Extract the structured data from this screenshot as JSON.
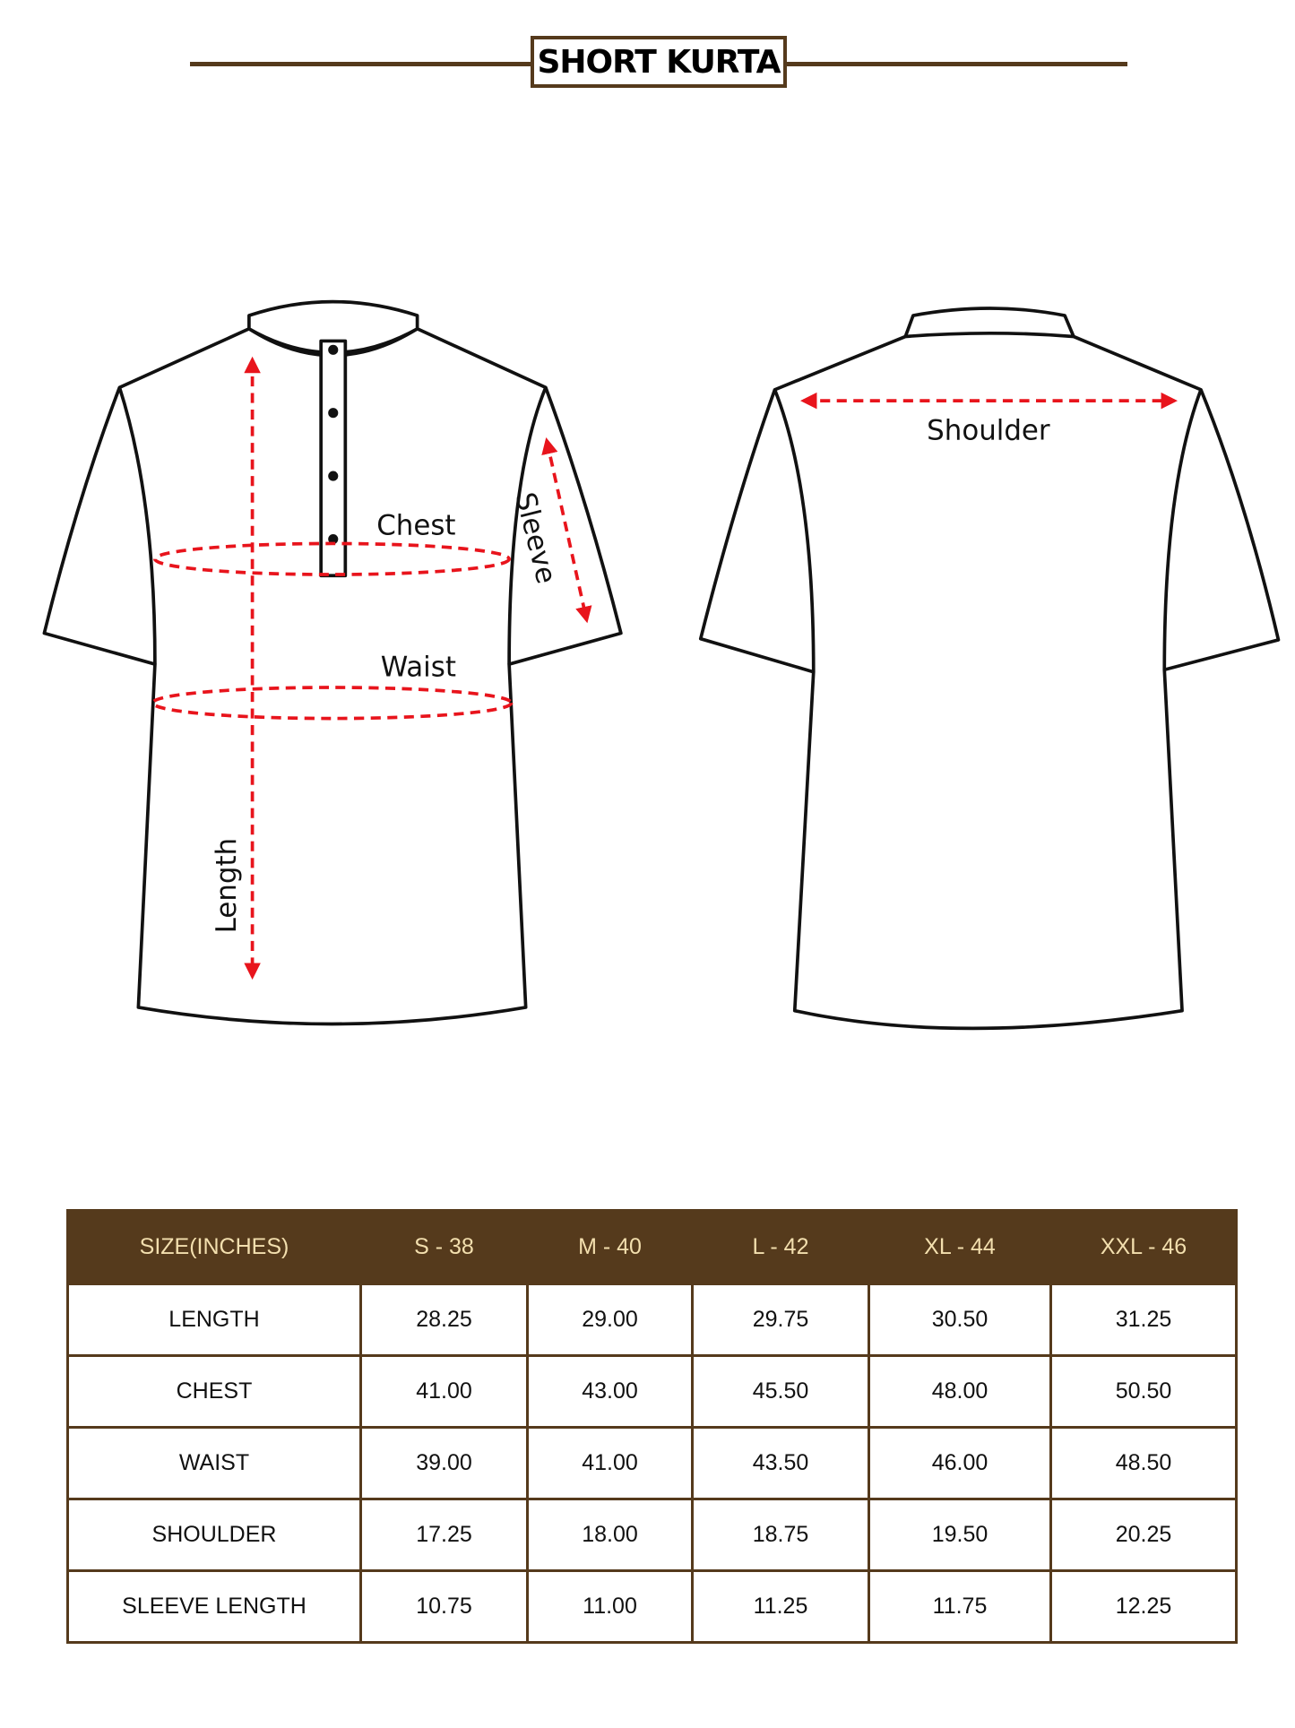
{
  "title": "SHORT KURTA",
  "colors": {
    "brand": "#553a1c",
    "header_text": "#f3dfae",
    "measure": "#e8141c"
  },
  "front_labels": {
    "chest": "Chest",
    "waist": "Waist",
    "length": "Length",
    "sleeve": "Sleeve"
  },
  "back_labels": {
    "shoulder": "Shoulder"
  },
  "table": {
    "headers": [
      "SIZE(INCHES)",
      "S - 38",
      "M - 40",
      "L - 42",
      "XL - 44",
      "XXL - 46"
    ],
    "rows": [
      [
        "LENGTH",
        "28.25",
        "29.00",
        "29.75",
        "30.50",
        "31.25"
      ],
      [
        "CHEST",
        "41.00",
        "43.00",
        "45.50",
        "48.00",
        "50.50"
      ],
      [
        "WAIST",
        "39.00",
        "41.00",
        "43.50",
        "46.00",
        "48.50"
      ],
      [
        "SHOULDER",
        "17.25",
        "18.00",
        "18.75",
        "19.50",
        "20.25"
      ],
      [
        "SLEEVE LENGTH",
        "10.75",
        "11.00",
        "11.25",
        "11.75",
        "12.25"
      ]
    ]
  }
}
